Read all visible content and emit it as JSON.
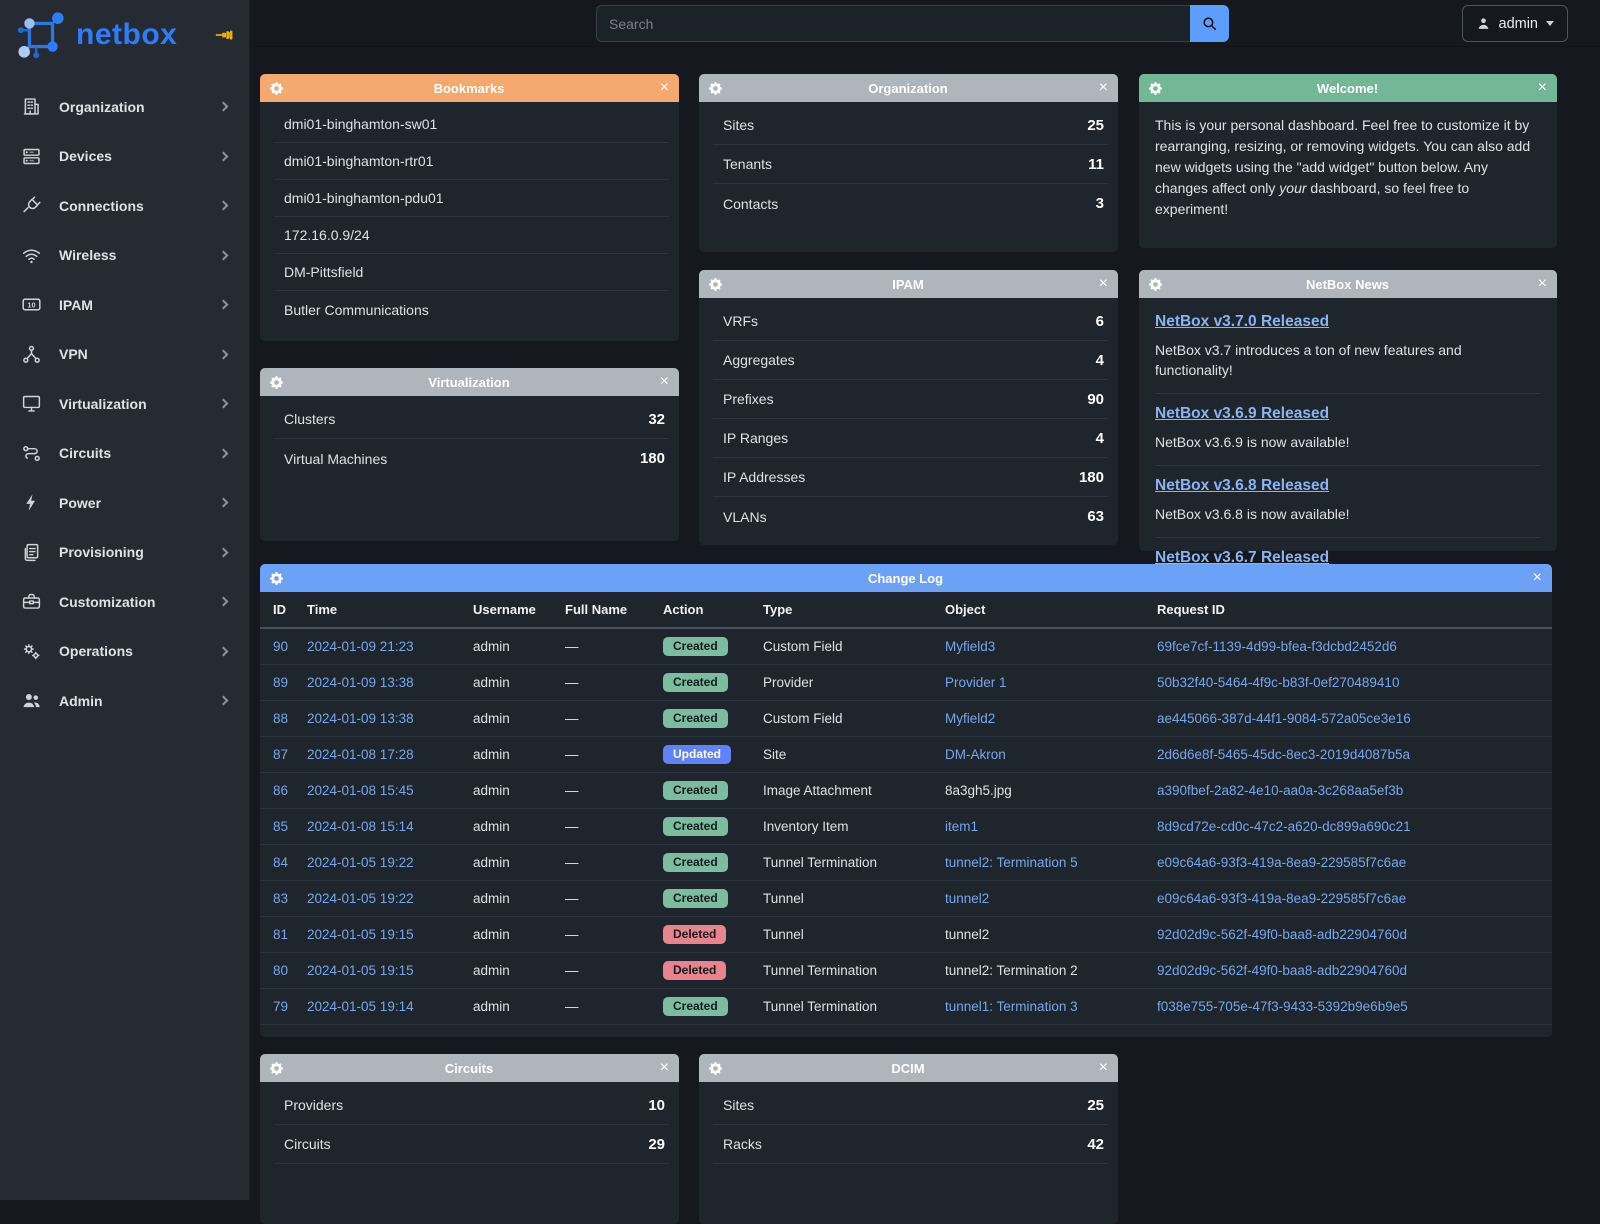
{
  "colors": {
    "accent_blue": "#2e7df6",
    "header_orange": "#f3a970",
    "header_gray": "#aeb5bc",
    "header_green": "#74b797",
    "header_blue": "#6ba2f8",
    "badge_created": "#7cbd9f",
    "badge_updated": "#6282f4",
    "badge_deleted": "#e8838f",
    "link_blue": "#79a6ea",
    "pin_gold": "#edb100"
  },
  "brand": {
    "name": "netbox"
  },
  "topbar": {
    "search_placeholder": "Search",
    "user_label": "admin"
  },
  "sidebar": {
    "items": [
      {
        "label": "Organization",
        "icon": "building-icon"
      },
      {
        "label": "Devices",
        "icon": "server-icon"
      },
      {
        "label": "Connections",
        "icon": "plug-icon"
      },
      {
        "label": "Wireless",
        "icon": "wifi-icon"
      },
      {
        "label": "IPAM",
        "icon": "ip-counter-icon"
      },
      {
        "label": "VPN",
        "icon": "network-nodes-icon"
      },
      {
        "label": "Virtualization",
        "icon": "monitor-icon"
      },
      {
        "label": "Circuits",
        "icon": "route-icon"
      },
      {
        "label": "Power",
        "icon": "lightning-icon"
      },
      {
        "label": "Provisioning",
        "icon": "document-icon"
      },
      {
        "label": "Customization",
        "icon": "toolbox-icon"
      },
      {
        "label": "Operations",
        "icon": "gears-icon"
      },
      {
        "label": "Admin",
        "icon": "users-icon"
      }
    ]
  },
  "widgets": {
    "bookmarks": {
      "title": "Bookmarks",
      "items": [
        "dmi01-binghamton-sw01",
        "dmi01-binghamton-rtr01",
        "dmi01-binghamton-pdu01",
        "172.16.0.9/24",
        "DM-Pittsfield",
        "Butler Communications"
      ]
    },
    "organization": {
      "title": "Organization",
      "stats": [
        {
          "label": "Sites",
          "value": "25"
        },
        {
          "label": "Tenants",
          "value": "11"
        },
        {
          "label": "Contacts",
          "value": "3"
        }
      ]
    },
    "welcome": {
      "title": "Welcome!",
      "text_before_italic": "This is your personal dashboard. Feel free to customize it by rearranging, resizing, or removing widgets. You can also add new widgets using the \"add widget\" button below. Any changes affect only ",
      "italic_word": "your",
      "text_after_italic": " dashboard, so feel free to experiment!"
    },
    "ipam": {
      "title": "IPAM",
      "stats": [
        {
          "label": "VRFs",
          "value": "6"
        },
        {
          "label": "Aggregates",
          "value": "4"
        },
        {
          "label": "Prefixes",
          "value": "90"
        },
        {
          "label": "IP Ranges",
          "value": "4"
        },
        {
          "label": "IP Addresses",
          "value": "180"
        },
        {
          "label": "VLANs",
          "value": "63"
        }
      ]
    },
    "news": {
      "title": "NetBox News",
      "items": [
        {
          "title": "NetBox v3.7.0 Released",
          "description": "NetBox v3.7 introduces a ton of new features and functionality!"
        },
        {
          "title": "NetBox v3.6.9 Released",
          "description": "NetBox v3.6.9 is now available!"
        },
        {
          "title": "NetBox v3.6.8 Released",
          "description": "NetBox v3.6.8 is now available!"
        },
        {
          "title": "NetBox v3.6.7 Released",
          "description": ""
        }
      ]
    },
    "virtualization": {
      "title": "Virtualization",
      "stats": [
        {
          "label": "Clusters",
          "value": "32"
        },
        {
          "label": "Virtual Machines",
          "value": "180"
        }
      ]
    },
    "changelog": {
      "title": "Change Log",
      "columns": [
        "ID",
        "Time",
        "Username",
        "Full Name",
        "Action",
        "Type",
        "Object",
        "Request ID"
      ],
      "rows": [
        {
          "id": "90",
          "time": "2024-01-09 21:23",
          "username": "admin",
          "full_name": "—",
          "action": "Created",
          "type": "Custom Field",
          "object": "Myfield3",
          "object_link": true,
          "request_id": "69fce7cf-1139-4d99-bfea-f3dcbd2452d6"
        },
        {
          "id": "89",
          "time": "2024-01-09 13:38",
          "username": "admin",
          "full_name": "—",
          "action": "Created",
          "type": "Provider",
          "object": "Provider 1",
          "object_link": true,
          "request_id": "50b32f40-5464-4f9c-b83f-0ef270489410"
        },
        {
          "id": "88",
          "time": "2024-01-09 13:38",
          "username": "admin",
          "full_name": "—",
          "action": "Created",
          "type": "Custom Field",
          "object": "Myfield2",
          "object_link": true,
          "request_id": "ae445066-387d-44f1-9084-572a05ce3e16"
        },
        {
          "id": "87",
          "time": "2024-01-08 17:28",
          "username": "admin",
          "full_name": "—",
          "action": "Updated",
          "type": "Site",
          "object": "DM-Akron",
          "object_link": true,
          "request_id": "2d6d6e8f-5465-45dc-8ec3-2019d4087b5a"
        },
        {
          "id": "86",
          "time": "2024-01-08 15:45",
          "username": "admin",
          "full_name": "—",
          "action": "Created",
          "type": "Image Attachment",
          "object": "8a3gh5.jpg",
          "object_link": false,
          "request_id": "a390fbef-2a82-4e10-aa0a-3c268aa5ef3b"
        },
        {
          "id": "85",
          "time": "2024-01-08 15:14",
          "username": "admin",
          "full_name": "—",
          "action": "Created",
          "type": "Inventory Item",
          "object": "item1",
          "object_link": true,
          "request_id": "8d9cd72e-cd0c-47c2-a620-dc899a690c21"
        },
        {
          "id": "84",
          "time": "2024-01-05 19:22",
          "username": "admin",
          "full_name": "—",
          "action": "Created",
          "type": "Tunnel Termination",
          "object": "tunnel2: Termination 5",
          "object_link": true,
          "request_id": "e09c64a6-93f3-419a-8ea9-229585f7c6ae"
        },
        {
          "id": "83",
          "time": "2024-01-05 19:22",
          "username": "admin",
          "full_name": "—",
          "action": "Created",
          "type": "Tunnel",
          "object": "tunnel2",
          "object_link": true,
          "request_id": "e09c64a6-93f3-419a-8ea9-229585f7c6ae"
        },
        {
          "id": "81",
          "time": "2024-01-05 19:15",
          "username": "admin",
          "full_name": "—",
          "action": "Deleted",
          "type": "Tunnel",
          "object": "tunnel2",
          "object_link": false,
          "request_id": "92d02d9c-562f-49f0-baa8-adb22904760d"
        },
        {
          "id": "80",
          "time": "2024-01-05 19:15",
          "username": "admin",
          "full_name": "—",
          "action": "Deleted",
          "type": "Tunnel Termination",
          "object": "tunnel2: Termination 2",
          "object_link": false,
          "request_id": "92d02d9c-562f-49f0-baa8-adb22904760d"
        },
        {
          "id": "79",
          "time": "2024-01-05 19:14",
          "username": "admin",
          "full_name": "—",
          "action": "Created",
          "type": "Tunnel Termination",
          "object": "tunnel1: Termination 3",
          "object_link": true,
          "request_id": "f038e755-705e-47f3-9433-5392b9e6b9e5"
        }
      ]
    },
    "circuits": {
      "title": "Circuits",
      "stats": [
        {
          "label": "Providers",
          "value": "10"
        },
        {
          "label": "Circuits",
          "value": "29"
        }
      ]
    },
    "dcim": {
      "title": "DCIM",
      "stats": [
        {
          "label": "Sites",
          "value": "25"
        },
        {
          "label": "Racks",
          "value": "42"
        }
      ]
    }
  }
}
